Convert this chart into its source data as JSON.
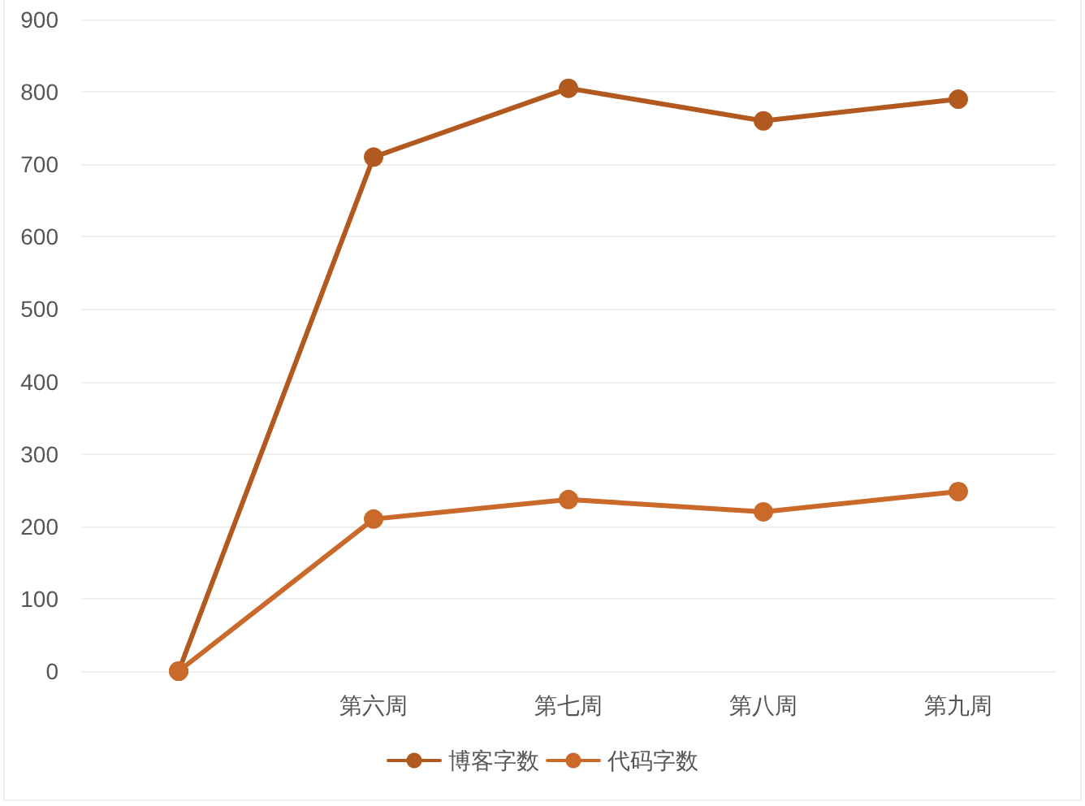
{
  "chart_data": {
    "type": "line",
    "categories": [
      null,
      "第六周",
      "第七周",
      "第八周",
      "第九周"
    ],
    "series": [
      {
        "name": "博客字数",
        "color": "#b1591f",
        "values": [
          0,
          710,
          805,
          760,
          790
        ]
      },
      {
        "name": "代码字数",
        "color": "#c9692a",
        "values": [
          0,
          210,
          237,
          220,
          248
        ]
      }
    ],
    "ylim": [
      0,
      900
    ],
    "yticks": [
      0,
      100,
      200,
      300,
      400,
      500,
      600,
      700,
      800,
      900
    ],
    "grid": "y",
    "legend": "bottom",
    "marker": "circle",
    "line_style": "solid"
  }
}
